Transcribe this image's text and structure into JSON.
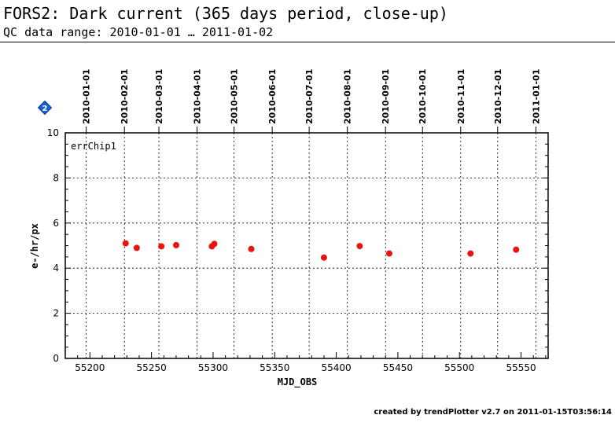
{
  "header": {
    "title": "FORS2: Dark current (365 days period, close-up)",
    "subtitle": "QC data range: 2010-01-01 … 2011-01-02"
  },
  "footer": {
    "text": "created by trendPlotter v2.7 on 2011-01-15T03:56:14"
  },
  "badge": {
    "icon": "diamond-badge-icon",
    "number": "2",
    "color": "#1060e0"
  },
  "chart_data": {
    "type": "scatter",
    "title": "FORS2: Dark current (365 days period, close-up)",
    "xlabel": "MJD_OBS",
    "ylabel": "e-/hr/px",
    "xlim": [
      55180,
      55572
    ],
    "ylim": [
      0,
      10
    ],
    "x_ticks": [
      "55200",
      "55250",
      "55300",
      "55350",
      "55400",
      "55450",
      "55500",
      "55550"
    ],
    "x_tick_values": [
      55200,
      55250,
      55300,
      55350,
      55400,
      55450,
      55500,
      55550
    ],
    "y_ticks": [
      "0",
      "2",
      "4",
      "6",
      "8",
      "10"
    ],
    "y_tick_values": [
      0,
      2,
      4,
      6,
      8,
      10
    ],
    "date_ticks": [
      {
        "label": "2010-01-01",
        "mjd": 55197
      },
      {
        "label": "2010-02-01",
        "mjd": 55228
      },
      {
        "label": "2010-03-01",
        "mjd": 55256
      },
      {
        "label": "2010-04-01",
        "mjd": 55287
      },
      {
        "label": "2010-05-01",
        "mjd": 55317
      },
      {
        "label": "2010-06-01",
        "mjd": 55348
      },
      {
        "label": "2010-07-01",
        "mjd": 55378
      },
      {
        "label": "2010-08-01",
        "mjd": 55409
      },
      {
        "label": "2010-09-01",
        "mjd": 55440
      },
      {
        "label": "2010-10-01",
        "mjd": 55470
      },
      {
        "label": "2010-11-01",
        "mjd": 55501
      },
      {
        "label": "2010-12-01",
        "mjd": 55531
      },
      {
        "label": "2011-01-01",
        "mjd": 55562
      }
    ],
    "grid": true,
    "series": [
      {
        "name": "errChip1",
        "color": "#ee1111",
        "points": [
          {
            "x": 55229,
            "y": 5.1
          },
          {
            "x": 55238,
            "y": 4.9
          },
          {
            "x": 55258,
            "y": 4.97
          },
          {
            "x": 55270,
            "y": 5.02
          },
          {
            "x": 55299,
            "y": 4.97
          },
          {
            "x": 55301,
            "y": 5.08
          },
          {
            "x": 55331,
            "y": 4.85
          },
          {
            "x": 55390,
            "y": 4.47
          },
          {
            "x": 55419,
            "y": 4.98
          },
          {
            "x": 55443,
            "y": 4.65
          },
          {
            "x": 55509,
            "y": 4.65
          },
          {
            "x": 55546,
            "y": 4.82
          }
        ]
      }
    ]
  }
}
